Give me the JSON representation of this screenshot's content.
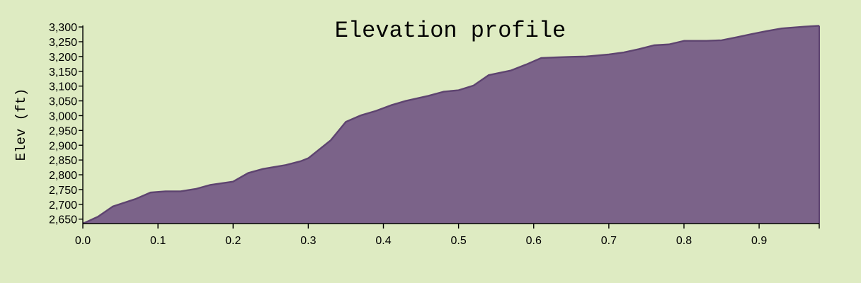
{
  "chart_data": {
    "type": "area",
    "title": "Elevation profile",
    "xlabel": "",
    "ylabel": "Elev (ft)",
    "xlim": [
      0,
      0.98
    ],
    "ylim": [
      2635,
      3305
    ],
    "x_ticks": [
      0.0,
      0.1,
      0.2,
      0.3,
      0.4,
      0.5,
      0.6,
      0.7,
      0.8,
      0.9
    ],
    "x_tick_labels": [
      "0.0",
      "0.1",
      "0.2",
      "0.3",
      "0.4",
      "0.5",
      "0.6",
      "0.7",
      "0.8",
      "0.9"
    ],
    "y_ticks": [
      2650,
      2700,
      2750,
      2800,
      2850,
      2900,
      2950,
      3000,
      3050,
      3100,
      3150,
      3200,
      3250,
      3300
    ],
    "y_tick_labels": [
      "2,650",
      "2,700",
      "2,750",
      "2,800",
      "2,850",
      "2,900",
      "2,950",
      "3,000",
      "3,050",
      "3,100",
      "3,150",
      "3,200",
      "3,250",
      "3,300"
    ],
    "grid": false,
    "legend": "none",
    "fill_color": "#7b6389",
    "line_color": "#5e4470",
    "background_color": "#deebc2",
    "x": [
      0.0,
      0.02,
      0.04,
      0.07,
      0.09,
      0.11,
      0.13,
      0.15,
      0.17,
      0.2,
      0.22,
      0.24,
      0.27,
      0.29,
      0.3,
      0.33,
      0.35,
      0.37,
      0.39,
      0.41,
      0.43,
      0.46,
      0.48,
      0.5,
      0.52,
      0.54,
      0.57,
      0.59,
      0.61,
      0.63,
      0.65,
      0.67,
      0.7,
      0.72,
      0.74,
      0.76,
      0.78,
      0.8,
      0.83,
      0.85,
      0.87,
      0.89,
      0.91,
      0.93,
      0.96,
      0.98
    ],
    "y": [
      2635,
      2658,
      2693,
      2718,
      2740,
      2744,
      2744,
      2752,
      2766,
      2777,
      2806,
      2820,
      2833,
      2846,
      2856,
      2917,
      2979,
      3001,
      3016,
      3035,
      3050,
      3067,
      3081,
      3086,
      3102,
      3137,
      3153,
      3173,
      3195,
      3197,
      3199,
      3200,
      3207,
      3214,
      3225,
      3238,
      3241,
      3253,
      3253,
      3255,
      3265,
      3276,
      3286,
      3295,
      3301,
      3304
    ]
  }
}
